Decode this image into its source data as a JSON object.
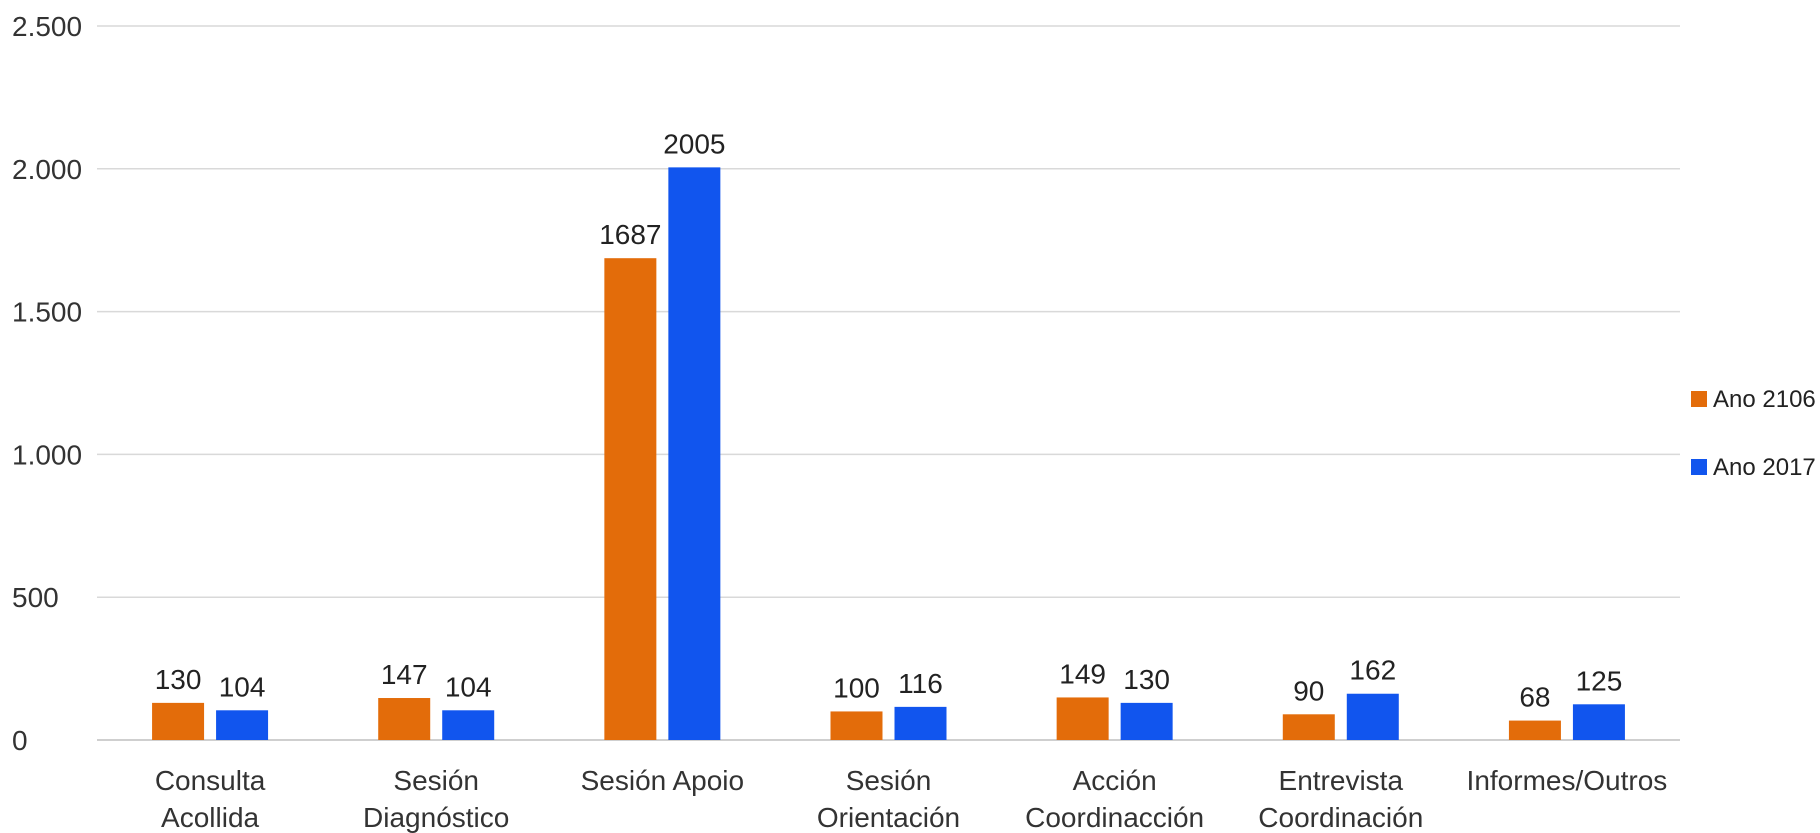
{
  "chart_data": {
    "type": "bar",
    "title": "",
    "xlabel": "",
    "ylabel": "",
    "categories": [
      [
        "Consulta",
        "Acollida"
      ],
      [
        "Sesión",
        "Diagnóstico"
      ],
      [
        "Sesión Apoio"
      ],
      [
        "Sesión",
        "Orientación"
      ],
      [
        "Acción",
        "Coordinacción"
      ],
      [
        "Entrevista",
        "Coordinación"
      ],
      [
        "Informes/Outros"
      ]
    ],
    "series": [
      {
        "name": "Ano 2106",
        "color": "#e36c0a",
        "values": [
          130,
          147,
          1687,
          100,
          149,
          90,
          68
        ]
      },
      {
        "name": "Ano 2017",
        "color": "#1155ee",
        "values": [
          104,
          104,
          2005,
          116,
          130,
          162,
          125
        ]
      }
    ],
    "ylim": [
      0,
      2500
    ],
    "yticks": [
      0,
      500,
      1000,
      1500,
      2000,
      2500
    ],
    "ytick_labels": [
      "0",
      "500",
      "1.000",
      "1.500",
      "2.000",
      "2.500"
    ],
    "grid": true,
    "legend": "right",
    "data_labels": true
  }
}
